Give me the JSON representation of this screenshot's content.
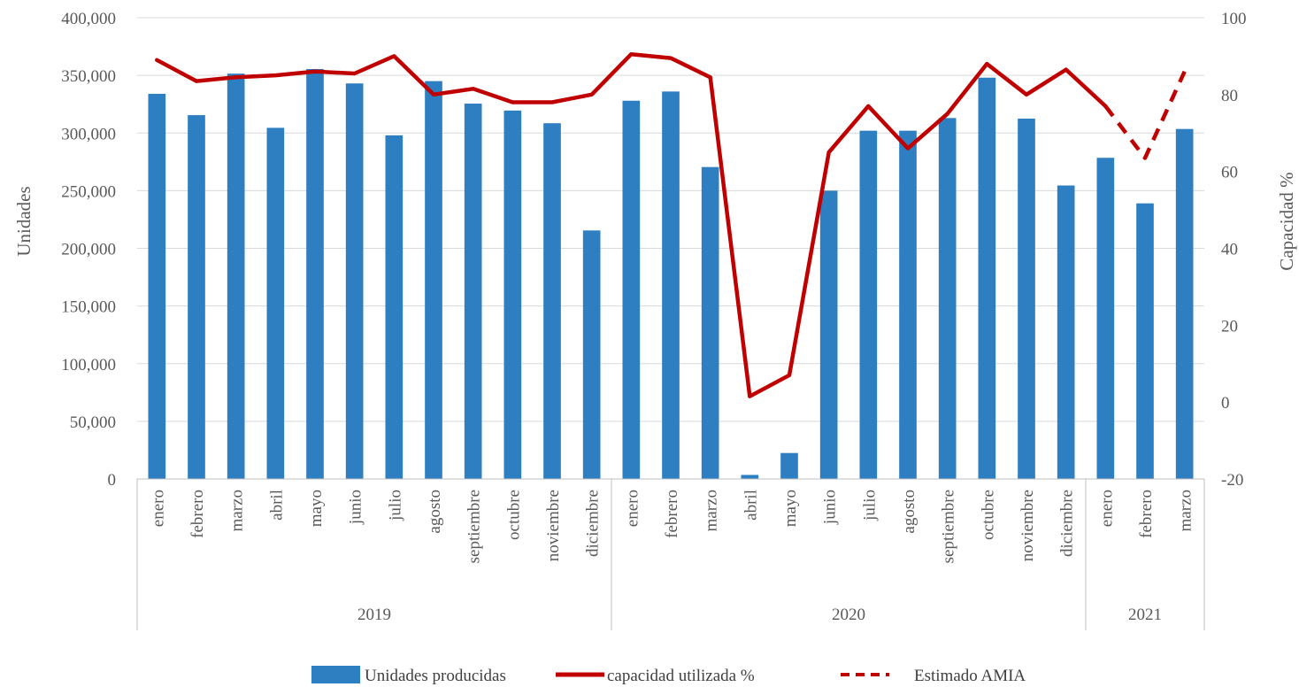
{
  "chart_data": {
    "type": "bar",
    "groups": [
      {
        "label": "2019",
        "categories": [
          "enero",
          "febrero",
          "marzo",
          "abril",
          "mayo",
          "junio",
          "julio",
          "agosto",
          "septiembre",
          "octubre",
          "noviembre",
          "diciembre"
        ]
      },
      {
        "label": "2020",
        "categories": [
          "enero",
          "febrero",
          "marzo",
          "abril",
          "mayo",
          "junio",
          "julio",
          "agosto",
          "septiembre",
          "octubre",
          "noviembre",
          "diciembre"
        ]
      },
      {
        "label": "2021",
        "categories": [
          "enero",
          "febrero",
          "marzo"
        ]
      }
    ],
    "series": [
      {
        "name": "Unidades producidas",
        "type": "bar",
        "axis": "left",
        "color": "#2e7ec2",
        "values": [
          334000,
          315500,
          351500,
          304500,
          355500,
          343000,
          298000,
          345000,
          325500,
          319500,
          308500,
          215500,
          328000,
          336000,
          270500,
          3500,
          22500,
          250000,
          302000,
          302000,
          313000,
          348000,
          312500,
          254500,
          278500,
          239000,
          303500
        ]
      },
      {
        "name": "capacidad utilizada %",
        "type": "line",
        "axis": "right",
        "color": "#c00000",
        "values": [
          89,
          83.5,
          84.5,
          85,
          86,
          85.5,
          90,
          80,
          81.5,
          78,
          78,
          80,
          90.5,
          89.5,
          84.5,
          1.5,
          7,
          65,
          77,
          66,
          75,
          88,
          80,
          86.5,
          77,
          null,
          null
        ]
      },
      {
        "name": "Estimado AMIA",
        "type": "line-dashed",
        "axis": "right",
        "color": "#c00000",
        "values": [
          null,
          null,
          null,
          null,
          null,
          null,
          null,
          null,
          null,
          null,
          null,
          null,
          null,
          null,
          null,
          null,
          null,
          null,
          null,
          null,
          null,
          null,
          null,
          null,
          77,
          63.5,
          86
        ]
      }
    ],
    "yAxisLeft": {
      "label": "Unidades",
      "min": 0,
      "max": 400000,
      "step": 50000,
      "ticks": [
        "0",
        "50,000",
        "100,000",
        "150,000",
        "200,000",
        "250,000",
        "300,000",
        "350,000",
        "400,000"
      ]
    },
    "yAxisRight": {
      "label": "Capacidad %",
      "min": -20,
      "max": 100,
      "step": 20,
      "ticks": [
        "-20",
        "0",
        "20",
        "40",
        "60",
        "80",
        "100"
      ]
    },
    "grid": true,
    "legend_position": "bottom"
  }
}
